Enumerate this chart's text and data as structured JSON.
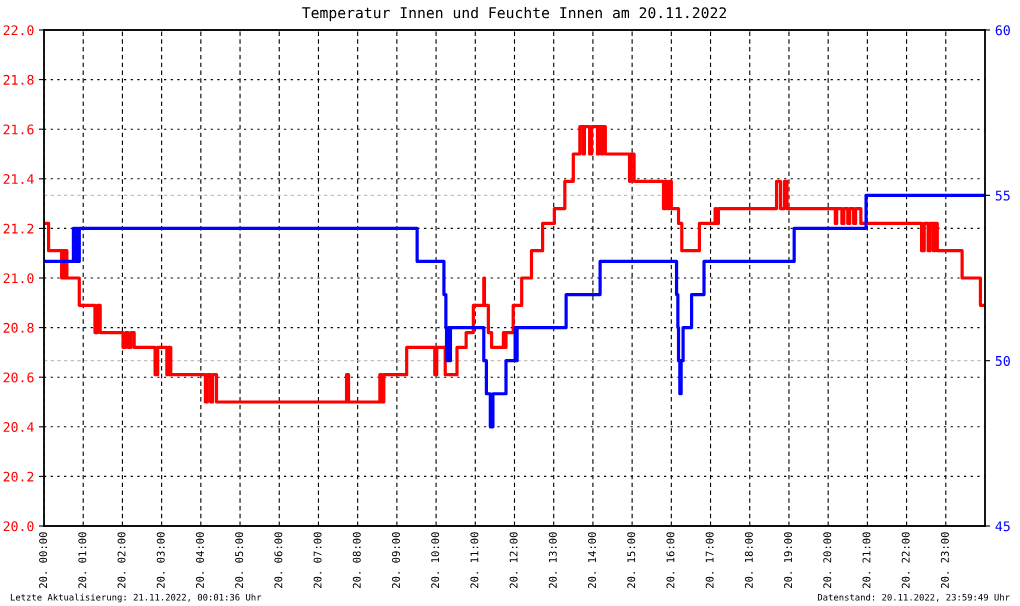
{
  "chart_data": {
    "type": "step",
    "title": "Temperatur Innen und Feuchte Innen am 20.11.2022",
    "annotations": [
      "Letzte Aktualisierung: 21.11.2022, 00:01:36 Uhr",
      "Datenstand: 20.11.2022, 23:59:49 Uhr"
    ],
    "xlim": [
      "2022-11-20T00:00",
      "2022-11-21T00:00"
    ],
    "xticks": [
      {
        "value": "2022-11-20T00:00",
        "label": "20. 00:00"
      },
      {
        "value": "2022-11-20T01:00",
        "label": "20. 01:00"
      },
      {
        "value": "2022-11-20T02:00",
        "label": "20. 02:00"
      },
      {
        "value": "2022-11-20T03:00",
        "label": "20. 03:00"
      },
      {
        "value": "2022-11-20T04:00",
        "label": "20. 04:00"
      },
      {
        "value": "2022-11-20T05:00",
        "label": "20. 05:00"
      },
      {
        "value": "2022-11-20T06:00",
        "label": "20. 06:00"
      },
      {
        "value": "2022-11-20T07:00",
        "label": "20. 07:00"
      },
      {
        "value": "2022-11-20T08:00",
        "label": "20. 08:00"
      },
      {
        "value": "2022-11-20T09:00",
        "label": "20. 09:00"
      },
      {
        "value": "2022-11-20T10:00",
        "label": "20. 10:00"
      },
      {
        "value": "2022-11-20T11:00",
        "label": "20. 11:00"
      },
      {
        "value": "2022-11-20T12:00",
        "label": "20. 12:00"
      },
      {
        "value": "2022-11-20T13:00",
        "label": "20. 13:00"
      },
      {
        "value": "2022-11-20T14:00",
        "label": "20. 14:00"
      },
      {
        "value": "2022-11-20T15:00",
        "label": "20. 15:00"
      },
      {
        "value": "2022-11-20T16:00",
        "label": "20. 16:00"
      },
      {
        "value": "2022-11-20T17:00",
        "label": "20. 17:00"
      },
      {
        "value": "2022-11-20T18:00",
        "label": "20. 18:00"
      },
      {
        "value": "2022-11-20T19:00",
        "label": "20. 19:00"
      },
      {
        "value": "2022-11-20T20:00",
        "label": "20. 20:00"
      },
      {
        "value": "2022-11-20T21:00",
        "label": "20. 21:00"
      },
      {
        "value": "2022-11-20T22:00",
        "label": "20. 22:00"
      },
      {
        "value": "2022-11-20T23:00",
        "label": "20. 23:00"
      }
    ],
    "ylim": [
      20,
      22
    ],
    "yticks": [
      {
        "value": 20,
        "label": "20.0"
      },
      20.2,
      20.4,
      20.6,
      20.8,
      {
        "value": 21,
        "label": "21.0"
      },
      21.2,
      21.4,
      21.6,
      21.8,
      {
        "value": 22,
        "label": "22.0"
      }
    ],
    "y2lim": [
      45,
      60
    ],
    "y2ticks": [
      45,
      50,
      55,
      60
    ],
    "grid": true,
    "series": [
      {
        "color": "#ff0000",
        "x": [
          "2022-11-20T00:00",
          "2022-11-20T00:07",
          "2022-11-20T00:27",
          "2022-11-20T00:29",
          "2022-11-20T00:31",
          "2022-11-20T00:32",
          "2022-11-20T00:35",
          "2022-11-20T00:54",
          "2022-11-20T01:18",
          "2022-11-20T01:22",
          "2022-11-20T01:26",
          "2022-11-20T02:01",
          "2022-11-20T02:05",
          "2022-11-20T02:09",
          "2022-11-20T02:13",
          "2022-11-20T02:18",
          "2022-11-20T02:50",
          "2022-11-20T02:54",
          "2022-11-20T03:08",
          "2022-11-20T03:11",
          "2022-11-20T03:14",
          "2022-11-20T04:07",
          "2022-11-20T04:10",
          "2022-11-20T04:15",
          "2022-11-20T04:18",
          "2022-11-20T04:24",
          "2022-11-20T07:43",
          "2022-11-20T07:46",
          "2022-11-20T08:34",
          "2022-11-20T08:37",
          "2022-11-20T08:40",
          "2022-11-20T09:15",
          "2022-11-20T09:58",
          "2022-11-20T10:01",
          "2022-11-20T10:14",
          "2022-11-20T10:32",
          "2022-11-20T10:46",
          "2022-11-20T10:57",
          "2022-11-20T11:13",
          "2022-11-20T11:14",
          "2022-11-20T11:20",
          "2022-11-20T11:25",
          "2022-11-20T11:43",
          "2022-11-20T11:45",
          "2022-11-20T11:47",
          "2022-11-20T11:58",
          "2022-11-20T12:11",
          "2022-11-20T12:26",
          "2022-11-20T12:43",
          "2022-11-20T13:01",
          "2022-11-20T13:17",
          "2022-11-20T13:30",
          "2022-11-20T13:40",
          "2022-11-20T13:45",
          "2022-11-20T13:47",
          "2022-11-20T13:55",
          "2022-11-20T13:58",
          "2022-11-20T14:07",
          "2022-11-20T14:09",
          "2022-11-20T14:13",
          "2022-11-20T14:15",
          "2022-11-20T14:19",
          "2022-11-20T14:56",
          "2022-11-20T14:58",
          "2022-11-20T15:03",
          "2022-11-20T15:48",
          "2022-11-20T15:51",
          "2022-11-20T15:54",
          "2022-11-20T15:57",
          "2022-11-20T16:00",
          "2022-11-20T16:11",
          "2022-11-20T16:16",
          "2022-11-20T16:43",
          "2022-11-20T17:07",
          "2022-11-20T17:09",
          "2022-11-20T17:12",
          "2022-11-20T18:41",
          "2022-11-20T18:47",
          "2022-11-20T18:53",
          "2022-11-20T18:57",
          "2022-11-20T20:11",
          "2022-11-20T20:13",
          "2022-11-20T20:21",
          "2022-11-20T20:24",
          "2022-11-20T20:30",
          "2022-11-20T20:33",
          "2022-11-20T20:39",
          "2022-11-20T20:42",
          "2022-11-20T20:50",
          "2022-11-20T22:23",
          "2022-11-20T22:27",
          "2022-11-20T22:33",
          "2022-11-20T22:36",
          "2022-11-20T22:41",
          "2022-11-20T22:43",
          "2022-11-20T22:47",
          "2022-11-20T23:25",
          "2022-11-20T23:53",
          "2022-11-20T23:59"
        ],
        "values": [
          21.22,
          21.11,
          21.0,
          21.11,
          21.0,
          21.11,
          21.0,
          20.89,
          20.78,
          20.89,
          20.78,
          20.72,
          20.78,
          20.72,
          20.78,
          20.72,
          20.61,
          20.72,
          20.61,
          20.72,
          20.61,
          20.5,
          20.61,
          20.5,
          20.61,
          20.5,
          20.61,
          20.5,
          20.61,
          20.5,
          20.61,
          20.72,
          20.61,
          20.72,
          20.61,
          20.72,
          20.78,
          20.89,
          21.0,
          20.89,
          20.78,
          20.72,
          20.78,
          20.72,
          20.78,
          20.89,
          21.0,
          21.11,
          21.22,
          21.28,
          21.39,
          21.5,
          21.61,
          21.5,
          21.61,
          21.5,
          21.61,
          21.5,
          21.61,
          21.5,
          21.61,
          21.5,
          21.39,
          21.5,
          21.39,
          21.28,
          21.39,
          21.28,
          21.39,
          21.28,
          21.22,
          21.11,
          21.22,
          21.28,
          21.22,
          21.28,
          21.39,
          21.28,
          21.39,
          21.28,
          21.22,
          21.28,
          21.22,
          21.28,
          21.22,
          21.28,
          21.22,
          21.28,
          21.22,
          21.11,
          21.22,
          21.11,
          21.22,
          21.11,
          21.22,
          21.11,
          21.0,
          20.89,
          20.89
        ]
      },
      {
        "color": "#0000ff",
        "axis": "y2",
        "x": [
          "2022-11-20T00:00",
          "2022-11-20T00:45",
          "2022-11-20T00:47",
          "2022-11-20T00:49",
          "2022-11-20T00:52",
          "2022-11-20T00:54",
          "2022-11-20T09:31",
          "2022-11-20T10:12",
          "2022-11-20T10:15",
          "2022-11-20T10:16",
          "2022-11-20T10:19",
          "2022-11-20T10:20",
          "2022-11-20T10:22",
          "2022-11-20T11:13",
          "2022-11-20T11:17",
          "2022-11-20T11:23",
          "2022-11-20T11:27",
          "2022-11-20T11:47",
          "2022-11-20T12:01",
          "2022-11-20T12:02",
          "2022-11-20T12:04",
          "2022-11-20T13:19",
          "2022-11-20T14:11",
          "2022-11-20T16:08",
          "2022-11-20T16:10",
          "2022-11-20T16:11",
          "2022-11-20T16:13",
          "2022-11-20T16:15",
          "2022-11-20T16:18",
          "2022-11-20T16:31",
          "2022-11-20T16:50",
          "2022-11-20T19:08",
          "2022-11-20T20:58",
          "2022-11-20T23:59"
        ],
        "values": [
          53,
          54,
          53,
          54,
          53,
          54,
          53,
          52,
          51,
          50,
          51,
          50,
          51,
          50,
          49,
          48,
          49,
          50,
          51,
          50,
          51,
          52,
          53,
          52,
          51,
          50,
          49,
          50,
          51,
          52,
          53,
          54,
          55,
          55
        ]
      }
    ]
  }
}
